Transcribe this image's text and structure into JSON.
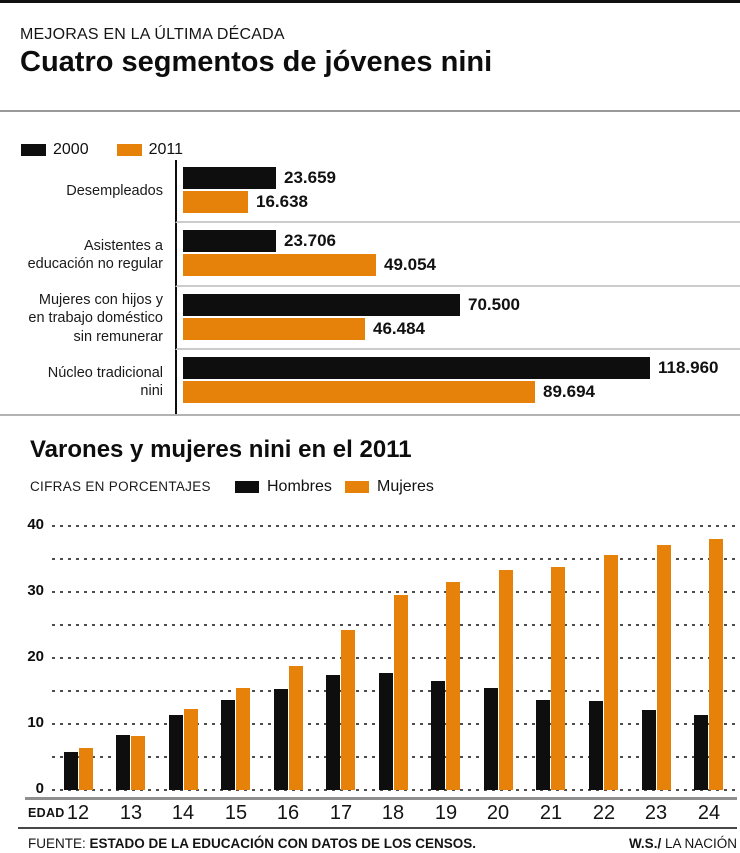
{
  "page": {
    "kicker": "MEJORAS EN LA ÚLTIMA DÉCADA",
    "title": "Cuatro segmentos de jóvenes nini"
  },
  "colors": {
    "black": "#0e0e0e",
    "orange": "#E6820A"
  },
  "chart_data": [
    {
      "type": "bar",
      "orientation": "horizontal",
      "legend_position": "top-left",
      "grid": false,
      "xlim": [
        0,
        120000
      ],
      "categories": [
        "Desempleados",
        "Asistentes a\neducación no regular",
        "Mujeres con hijos y\nen trabajo doméstico\nsin remunerar",
        "Núcleo tradicional\nnini"
      ],
      "series": [
        {
          "name": "2000",
          "color": "#0e0e0e",
          "values": [
            23659,
            23706,
            70500,
            118960
          ],
          "labels": [
            "23.659",
            "23.706",
            "70.500",
            "118.960"
          ]
        },
        {
          "name": "2011",
          "color": "#E6820A",
          "values": [
            16638,
            49054,
            46484,
            89694
          ],
          "labels": [
            "16.638",
            "49.054",
            "46.484",
            "89.694"
          ]
        }
      ]
    },
    {
      "type": "bar",
      "orientation": "vertical",
      "title": "Varones y mujeres nini en el 2011",
      "subtitle": "CIFRAS EN PORCENTAJES",
      "x_axis_label": "EDAD",
      "grid": "dotted horizontal every 5",
      "ylim": [
        0,
        40
      ],
      "yticks": [
        0,
        10,
        20,
        30,
        40
      ],
      "categories": [
        "12",
        "13",
        "14",
        "15",
        "16",
        "17",
        "18",
        "19",
        "20",
        "21",
        "22",
        "23",
        "24"
      ],
      "series": [
        {
          "name": "Hombres",
          "color": "#0e0e0e",
          "values": [
            5.8,
            8.3,
            11.4,
            13.6,
            15.3,
            17.4,
            17.7,
            16.5,
            15.4,
            13.6,
            13.4,
            12.1,
            11.3
          ]
        },
        {
          "name": "Mujeres",
          "color": "#E6820A",
          "values": [
            6.3,
            8.1,
            12.2,
            15.5,
            18.8,
            24.2,
            29.5,
            31.5,
            33.3,
            33.7,
            35.5,
            37.0,
            37.9
          ]
        }
      ]
    }
  ],
  "footer": {
    "source_label": "FUENTE:",
    "source_text": "ESTADO DE LA EDUCACIÓN CON DATOS DE LOS CENSOS.",
    "credit_bold": "W.S./",
    "credit_text": "LA NACIÓN"
  }
}
